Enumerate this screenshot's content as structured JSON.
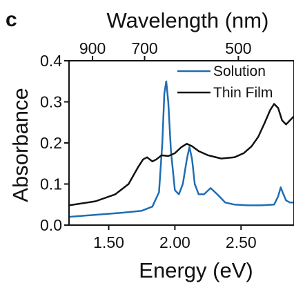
{
  "panel_label": "c",
  "chart_data": {
    "type": "line",
    "xlabel": "Energy (eV)",
    "x2label": "Wavelength (nm)",
    "ylabel": "Absorbance",
    "xlim": [
      1.2,
      2.9
    ],
    "ylim": [
      0.0,
      0.4
    ],
    "xticks": [
      {
        "value": 1.5,
        "label": "1.50"
      },
      {
        "value": 2.0,
        "label": "2.00"
      },
      {
        "value": 2.5,
        "label": "2.50"
      }
    ],
    "yticks": [
      {
        "value": 0.0,
        "label": "0.0"
      },
      {
        "value": 0.1,
        "label": "0.1"
      },
      {
        "value": 0.2,
        "label": "0.2"
      },
      {
        "value": 0.3,
        "label": "0.3"
      },
      {
        "value": 0.4,
        "label": "0.4"
      }
    ],
    "x2ticks": [
      {
        "value": 900,
        "label": "900"
      },
      {
        "value": 700,
        "label": "700"
      },
      {
        "value": 500,
        "label": "500"
      }
    ],
    "grid": false,
    "legend_position": "top-right",
    "series": [
      {
        "name": "Solution",
        "color": "#1f6db3",
        "x": [
          1.2,
          1.4,
          1.6,
          1.75,
          1.83,
          1.88,
          1.905,
          1.92,
          1.935,
          1.95,
          1.97,
          2.0,
          2.03,
          2.06,
          2.09,
          2.11,
          2.13,
          2.15,
          2.18,
          2.22,
          2.27,
          2.32,
          2.38,
          2.45,
          2.55,
          2.65,
          2.75,
          2.78,
          2.8,
          2.82,
          2.84,
          2.87,
          2.9
        ],
        "y": [
          0.02,
          0.025,
          0.03,
          0.035,
          0.045,
          0.08,
          0.2,
          0.32,
          0.35,
          0.3,
          0.18,
          0.085,
          0.075,
          0.1,
          0.16,
          0.19,
          0.16,
          0.1,
          0.075,
          0.075,
          0.09,
          0.075,
          0.055,
          0.05,
          0.048,
          0.048,
          0.05,
          0.07,
          0.092,
          0.075,
          0.06,
          0.055,
          0.055
        ]
      },
      {
        "name": "Thin Film",
        "color": "#111111",
        "x": [
          1.2,
          1.4,
          1.55,
          1.65,
          1.72,
          1.76,
          1.79,
          1.83,
          1.86,
          1.9,
          1.95,
          2.0,
          2.05,
          2.09,
          2.13,
          2.18,
          2.25,
          2.35,
          2.45,
          2.52,
          2.58,
          2.63,
          2.68,
          2.72,
          2.75,
          2.78,
          2.81,
          2.84,
          2.87,
          2.9
        ],
        "y": [
          0.048,
          0.058,
          0.075,
          0.1,
          0.14,
          0.16,
          0.165,
          0.155,
          0.16,
          0.17,
          0.168,
          0.175,
          0.19,
          0.198,
          0.192,
          0.18,
          0.17,
          0.162,
          0.165,
          0.175,
          0.192,
          0.215,
          0.25,
          0.28,
          0.295,
          0.285,
          0.255,
          0.245,
          0.255,
          0.265
        ]
      }
    ]
  }
}
